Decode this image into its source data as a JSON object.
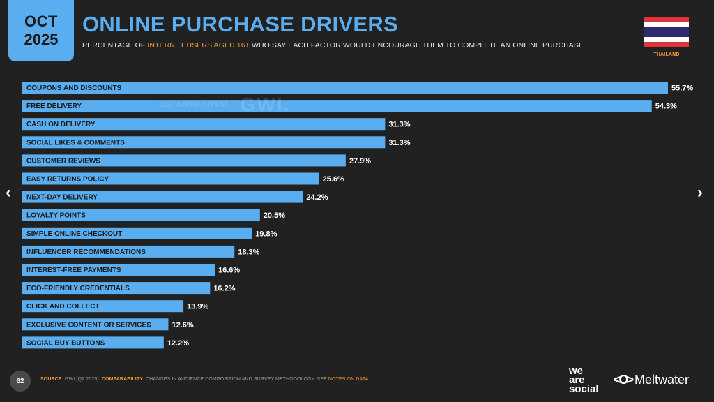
{
  "header": {
    "month": "OCT",
    "year": "2025",
    "title": "ONLINE PURCHASE DRIVERS",
    "subtitle_pre": "PERCENTAGE OF ",
    "subtitle_highlight": "INTERNET USERS AGED 16+",
    "subtitle_post": " WHO SAY EACH FACTOR WOULD ENCOURAGE THEM TO COMPLETE AN ONLINE PURCHASE",
    "country": "THAILAND"
  },
  "watermark": {
    "brand1": "DATAREPORTAL",
    "brand2": "GWI."
  },
  "nav": {
    "prev": "‹",
    "next": "›"
  },
  "footer": {
    "page_number": "62",
    "source_label": "SOURCE:",
    "source_text": " GWI (Q2 2025). ",
    "comparability_label": "COMPARABILITY:",
    "comparability_text": " CHANGES IN AUDIENCE COMPOSITION AND SURVEY METHODOLOGY. SEE ",
    "notes_link": "NOTES ON DATA",
    "period": ".",
    "brand_was_1": "we",
    "brand_was_2": "are",
    "brand_was_3": "social",
    "brand_meltwater": "Meltwater"
  },
  "colors": {
    "background": "#212121",
    "bar": "#5aaeef",
    "accent": "#f39a2b",
    "flag_red": "#e2333b",
    "flag_white": "#ffffff",
    "flag_blue": "#2d2a6e"
  },
  "chart_data": {
    "type": "bar",
    "orientation": "horizontal",
    "categories": [
      "COUPONS AND DISCOUNTS",
      "FREE DELIVERY",
      "CASH ON DELIVERY",
      "SOCIAL LIKES & COMMENTS",
      "CUSTOMER REVIEWS",
      "EASY RETURNS POLICY",
      "NEXT-DAY DELIVERY",
      "LOYALTY POINTS",
      "SIMPLE ONLINE CHECKOUT",
      "INFLUENCER RECOMMENDATIONS",
      "INTEREST-FREE PAYMENTS",
      "ECO-FRIENDLY CREDENTIALS",
      "CLICK AND COLLECT",
      "EXCLUSIVE CONTENT OR SERVICES",
      "SOCIAL BUY BUTTONS"
    ],
    "values": [
      55.7,
      54.3,
      31.3,
      31.3,
      27.9,
      25.6,
      24.2,
      20.5,
      19.8,
      18.3,
      16.6,
      16.2,
      13.9,
      12.6,
      12.2
    ],
    "value_labels": [
      "55.7%",
      "54.3%",
      "31.3%",
      "31.3%",
      "27.9%",
      "25.6%",
      "24.2%",
      "20.5%",
      "19.8%",
      "18.3%",
      "16.6%",
      "16.2%",
      "13.9%",
      "12.6%",
      "12.2%"
    ],
    "title": "ONLINE PURCHASE DRIVERS",
    "xlabel": "",
    "ylabel": "",
    "xlim": [
      0,
      55.7
    ],
    "grid": false,
    "legend": "none"
  }
}
